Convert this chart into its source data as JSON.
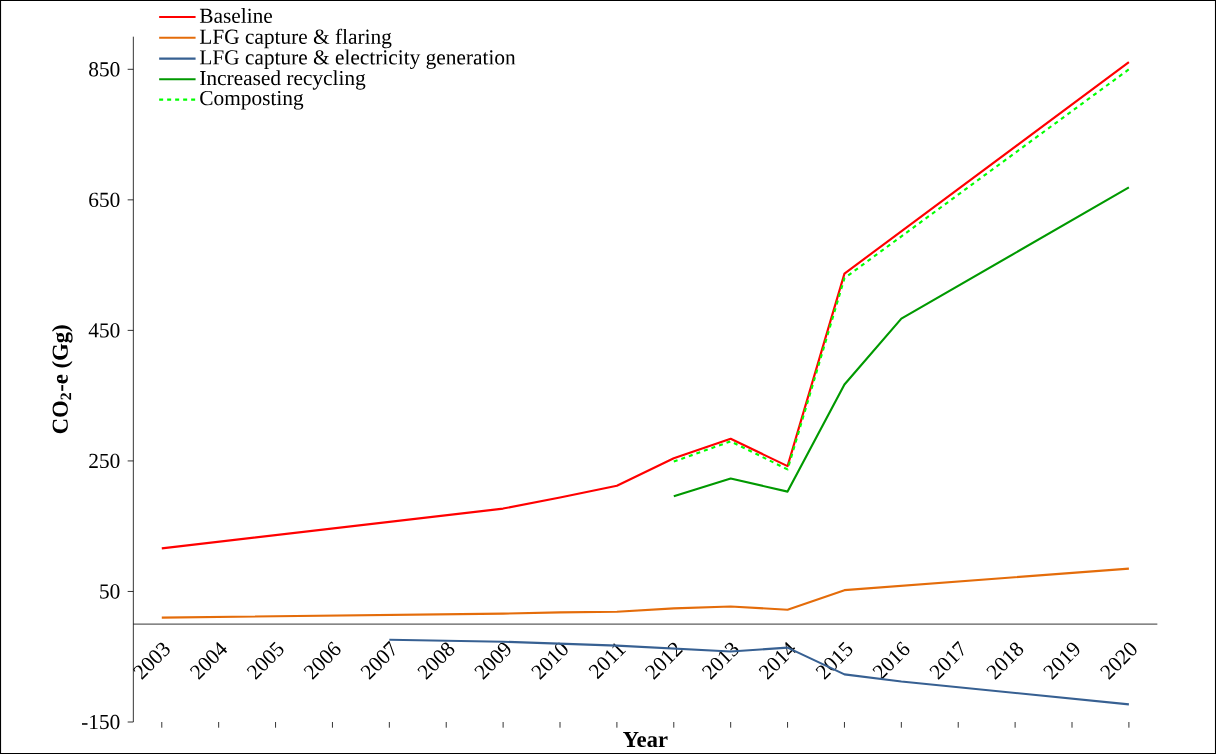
{
  "chart_data": {
    "type": "line",
    "xlabel": "Year",
    "ylabel": "**CO$_{2}$-e (Gg)**",
    "xlim": [
      2002.5,
      2020.5
    ],
    "xticks": [
      2003,
      2004,
      2005,
      2006,
      2007,
      2008,
      2009,
      2010,
      2011,
      2012,
      2013,
      2014,
      2015,
      2016,
      2017,
      2018,
      2019,
      2020
    ],
    "ylim": [
      -150,
      900
    ],
    "yticks": [
      -150,
      50,
      250,
      450,
      650,
      850
    ],
    "legend": "top left",
    "marker": "none",
    "series": [
      {
        "name": "Baseline",
        "color": "#ff0000",
        "x": [
          2003,
          2009,
          2010,
          2011,
          2012,
          2013,
          2014,
          2015,
          2020
        ],
        "values": [
          116,
          177,
          194,
          212,
          254,
          284,
          242,
          537,
          861
        ]
      },
      {
        "name": "LFG capture & flaring",
        "color": "#e46c0a",
        "x": [
          2003,
          2009,
          2010,
          2011,
          2012,
          2013,
          2014,
          2015,
          2020
        ],
        "values": [
          10,
          16,
          18,
          19,
          24,
          27,
          22,
          52,
          85
        ]
      },
      {
        "name": "LFG capture & electricity generation",
        "color": "#376092",
        "x": [
          2007,
          2009,
          2011,
          2013,
          2014,
          2015,
          2016,
          2020
        ],
        "values": [
          -24,
          -27,
          -33,
          -42,
          -36,
          -77,
          -88,
          -123
        ]
      },
      {
        "name": "Increased recycling",
        "color": "#009900",
        "x": [
          2012,
          2013,
          2014,
          2015,
          2016,
          2020
        ],
        "values": [
          196,
          223,
          203,
          367,
          468,
          669
        ]
      },
      {
        "name": "Composting",
        "color": "#00ff00",
        "line_style": "dashed",
        "x": [
          2012,
          2013,
          2014,
          2015,
          2020
        ],
        "values": [
          249,
          280,
          237,
          530,
          850
        ]
      }
    ]
  }
}
